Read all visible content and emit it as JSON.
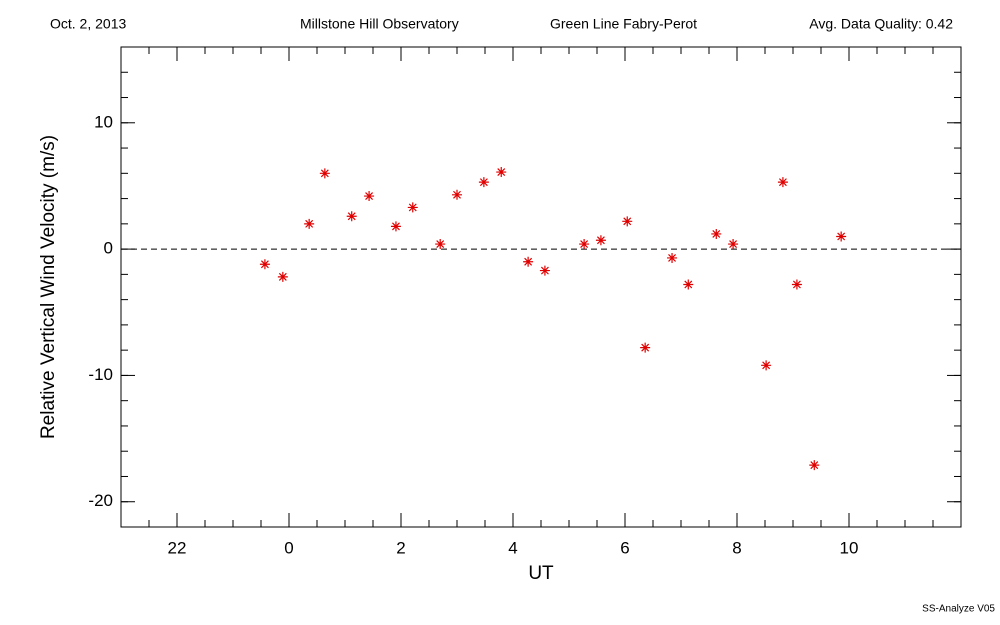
{
  "chart_data": {
    "type": "scatter",
    "header": [
      "Oct. 2, 2013",
      "Millstone Hill Observatory",
      "Green Line Fabry-Perot",
      "Avg. Data Quality: 0.42"
    ],
    "footer": "SS-Analyze V05",
    "xlabel": "UT",
    "ylabel": "Relative Vertical Wind Velocity (m/s)",
    "xlim": [
      -3,
      12
    ],
    "xticks": [
      {
        "value": -2,
        "label": "22"
      },
      0,
      2,
      4,
      6,
      8,
      10
    ],
    "ylim": [
      -22,
      16
    ],
    "yticks": [
      -20,
      -10,
      0,
      10
    ],
    "reference_line": 0,
    "color": "#e00000",
    "x": [
      -0.43,
      -0.11,
      0.36,
      0.64,
      1.12,
      1.43,
      1.91,
      2.21,
      2.7,
      3.0,
      3.48,
      3.79,
      4.27,
      4.57,
      5.27,
      5.57,
      6.04,
      6.36,
      6.84,
      7.13,
      7.63,
      7.93,
      8.52,
      8.82,
      9.07,
      9.38,
      9.86
    ],
    "values": [
      -1.2,
      -2.2,
      2.0,
      6.0,
      2.6,
      4.2,
      1.8,
      3.3,
      0.4,
      4.3,
      5.3,
      6.1,
      -1.0,
      -1.7,
      0.4,
      0.7,
      2.2,
      -7.8,
      -0.7,
      -2.8,
      1.2,
      0.4,
      -9.2,
      5.3,
      -2.8,
      -17.1,
      1.0
    ]
  }
}
